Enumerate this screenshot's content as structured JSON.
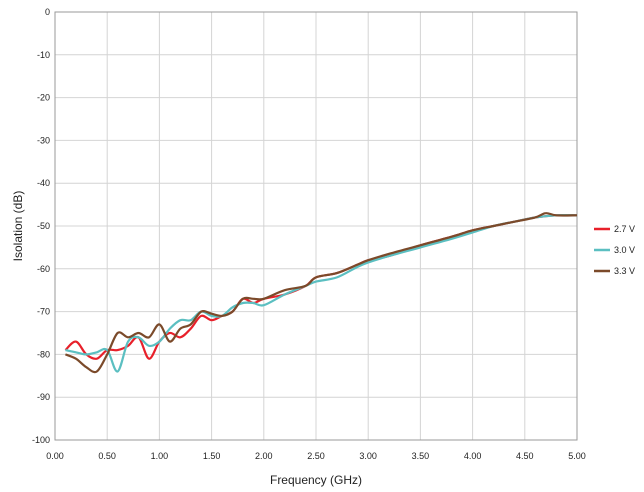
{
  "chart_data": {
    "type": "line",
    "xlabel": "Frequency (GHz)",
    "ylabel": "Isolation (dB)",
    "xlim": [
      0,
      5
    ],
    "ylim": [
      -100,
      0
    ],
    "x_ticks": [
      "0.00",
      "0.50",
      "1.00",
      "1.50",
      "2.00",
      "2.50",
      "3.00",
      "3.50",
      "4.00",
      "4.50",
      "5.00"
    ],
    "y_ticks": [
      "0",
      "-10",
      "-20",
      "-30",
      "-40",
      "-50",
      "-60",
      "-70",
      "-80",
      "-90",
      "-100"
    ],
    "x_tick_values": [
      0,
      0.5,
      1.0,
      1.5,
      2.0,
      2.5,
      3.0,
      3.5,
      4.0,
      4.5,
      5.0
    ],
    "y_tick_values": [
      0,
      -10,
      -20,
      -30,
      -40,
      -50,
      -60,
      -70,
      -80,
      -90,
      -100
    ],
    "grid": true,
    "legend_position": "right",
    "series": [
      {
        "name": "2.7 V",
        "color": "#e8202a",
        "points": [
          [
            0.1,
            -79
          ],
          [
            0.2,
            -77
          ],
          [
            0.3,
            -80
          ],
          [
            0.4,
            -81
          ],
          [
            0.5,
            -79
          ],
          [
            0.6,
            -79
          ],
          [
            0.7,
            -78
          ],
          [
            0.8,
            -76
          ],
          [
            0.9,
            -81
          ],
          [
            1.0,
            -77
          ],
          [
            1.1,
            -75
          ],
          [
            1.2,
            -76
          ],
          [
            1.3,
            -74
          ],
          [
            1.4,
            -71
          ],
          [
            1.5,
            -72
          ],
          [
            1.6,
            -71
          ],
          [
            1.7,
            -70
          ],
          [
            1.8,
            -67
          ],
          [
            1.9,
            -68
          ],
          [
            2.0,
            -67
          ],
          [
            2.2,
            -66
          ],
          [
            2.4,
            -64
          ],
          [
            2.5,
            -62
          ],
          [
            2.7,
            -61
          ],
          [
            2.9,
            -59
          ],
          [
            3.0,
            -58
          ],
          [
            3.2,
            -57
          ],
          [
            3.5,
            -54.5
          ],
          [
            3.8,
            -52.5
          ],
          [
            4.0,
            -51
          ],
          [
            4.2,
            -50
          ],
          [
            4.4,
            -49
          ],
          [
            4.6,
            -48
          ],
          [
            4.8,
            -47.5
          ],
          [
            5.0,
            -47.5
          ]
        ]
      },
      {
        "name": "3.0 V",
        "color": "#5bbfc1",
        "points": [
          [
            0.1,
            -79
          ],
          [
            0.2,
            -79.5
          ],
          [
            0.3,
            -80
          ],
          [
            0.4,
            -79.5
          ],
          [
            0.5,
            -79
          ],
          [
            0.6,
            -84
          ],
          [
            0.7,
            -77
          ],
          [
            0.8,
            -76
          ],
          [
            0.9,
            -78
          ],
          [
            1.0,
            -77
          ],
          [
            1.1,
            -74
          ],
          [
            1.2,
            -72
          ],
          [
            1.3,
            -72
          ],
          [
            1.4,
            -70
          ],
          [
            1.5,
            -71
          ],
          [
            1.6,
            -71
          ],
          [
            1.7,
            -69
          ],
          [
            1.8,
            -68
          ],
          [
            1.9,
            -68
          ],
          [
            2.0,
            -68.5
          ],
          [
            2.2,
            -66
          ],
          [
            2.4,
            -64
          ],
          [
            2.5,
            -63
          ],
          [
            2.7,
            -62
          ],
          [
            2.9,
            -59.5
          ],
          [
            3.0,
            -58.5
          ],
          [
            3.2,
            -57
          ],
          [
            3.5,
            -55
          ],
          [
            3.8,
            -53
          ],
          [
            4.0,
            -51.5
          ],
          [
            4.2,
            -50
          ],
          [
            4.4,
            -49
          ],
          [
            4.6,
            -48
          ],
          [
            4.8,
            -47.5
          ],
          [
            5.0,
            -47.5
          ]
        ]
      },
      {
        "name": "3.3 V",
        "color": "#7b4a2a",
        "points": [
          [
            0.1,
            -80
          ],
          [
            0.2,
            -81
          ],
          [
            0.3,
            -83
          ],
          [
            0.4,
            -84
          ],
          [
            0.5,
            -80
          ],
          [
            0.6,
            -75
          ],
          [
            0.7,
            -76
          ],
          [
            0.8,
            -75
          ],
          [
            0.9,
            -76
          ],
          [
            1.0,
            -73
          ],
          [
            1.1,
            -77
          ],
          [
            1.2,
            -74
          ],
          [
            1.3,
            -73
          ],
          [
            1.4,
            -70
          ],
          [
            1.5,
            -70.5
          ],
          [
            1.6,
            -71
          ],
          [
            1.7,
            -70
          ],
          [
            1.8,
            -67
          ],
          [
            1.9,
            -67
          ],
          [
            2.0,
            -67
          ],
          [
            2.2,
            -65
          ],
          [
            2.4,
            -64
          ],
          [
            2.5,
            -62
          ],
          [
            2.7,
            -61
          ],
          [
            2.9,
            -59
          ],
          [
            3.0,
            -58
          ],
          [
            3.2,
            -56.5
          ],
          [
            3.5,
            -54.5
          ],
          [
            3.8,
            -52.5
          ],
          [
            4.0,
            -51
          ],
          [
            4.2,
            -50
          ],
          [
            4.4,
            -49
          ],
          [
            4.6,
            -48
          ],
          [
            4.7,
            -47
          ],
          [
            4.8,
            -47.5
          ],
          [
            5.0,
            -47.5
          ]
        ]
      }
    ]
  }
}
